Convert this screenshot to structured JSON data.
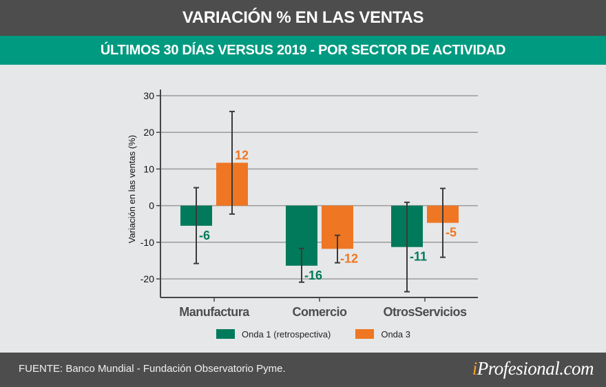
{
  "header": {
    "title": "VARIACIÓN % EN LAS VENTAS",
    "subtitle": "ÚLTIMOS 30 DÍAS VERSUS 2019 - POR SECTOR DE ACTIVIDAD"
  },
  "footer": {
    "source": "FUENTE: Banco Mundial - Fundación Observatorio Pyme.",
    "logo_i": "i",
    "logo_rest": "Profesional.com"
  },
  "colors": {
    "title_bg": "#4d4d4d",
    "subtitle_bg": "#009a80",
    "background": "#e6e7e8",
    "series_1": "#007a5a",
    "series_2": "#ef7622",
    "logo_accent": "#f7a11a"
  },
  "chart_data": {
    "type": "bar",
    "title": "VARIACIÓN % EN LAS VENTAS",
    "subtitle": "ÚLTIMOS 30 DÍAS VERSUS 2019 - POR SECTOR DE ACTIVIDAD",
    "xlabel": "",
    "ylabel": "Variación en las ventas (%)",
    "ylim": [
      -25,
      32
    ],
    "yticks": [
      30,
      20,
      10,
      0,
      -10,
      -20
    ],
    "ytick_labels": [
      "30",
      "20",
      "10",
      "0",
      "-10",
      "-20"
    ],
    "grid": true,
    "legend_position": "bottom",
    "categories": [
      "Manufactura",
      "Comercio",
      "OtrosServicios"
    ],
    "series": [
      {
        "name": "Onda 1 (retrospectiva)",
        "color": "#007a5a",
        "values": [
          -5.5,
          -16.4,
          -11.3
        ],
        "labels": [
          "-6",
          "-16",
          "-11"
        ],
        "error_low": [
          -15.8,
          -20.9,
          -23.5
        ],
        "error_high": [
          4.9,
          -11.7,
          0.9
        ]
      },
      {
        "name": "Onda 3",
        "color": "#ef7622",
        "values": [
          11.7,
          -11.8,
          -4.7
        ],
        "labels": [
          "12",
          "-12",
          "-5"
        ],
        "error_low": [
          -2.3,
          -15.6,
          -14.1
        ],
        "error_high": [
          25.7,
          -8.1,
          4.7
        ]
      }
    ]
  }
}
